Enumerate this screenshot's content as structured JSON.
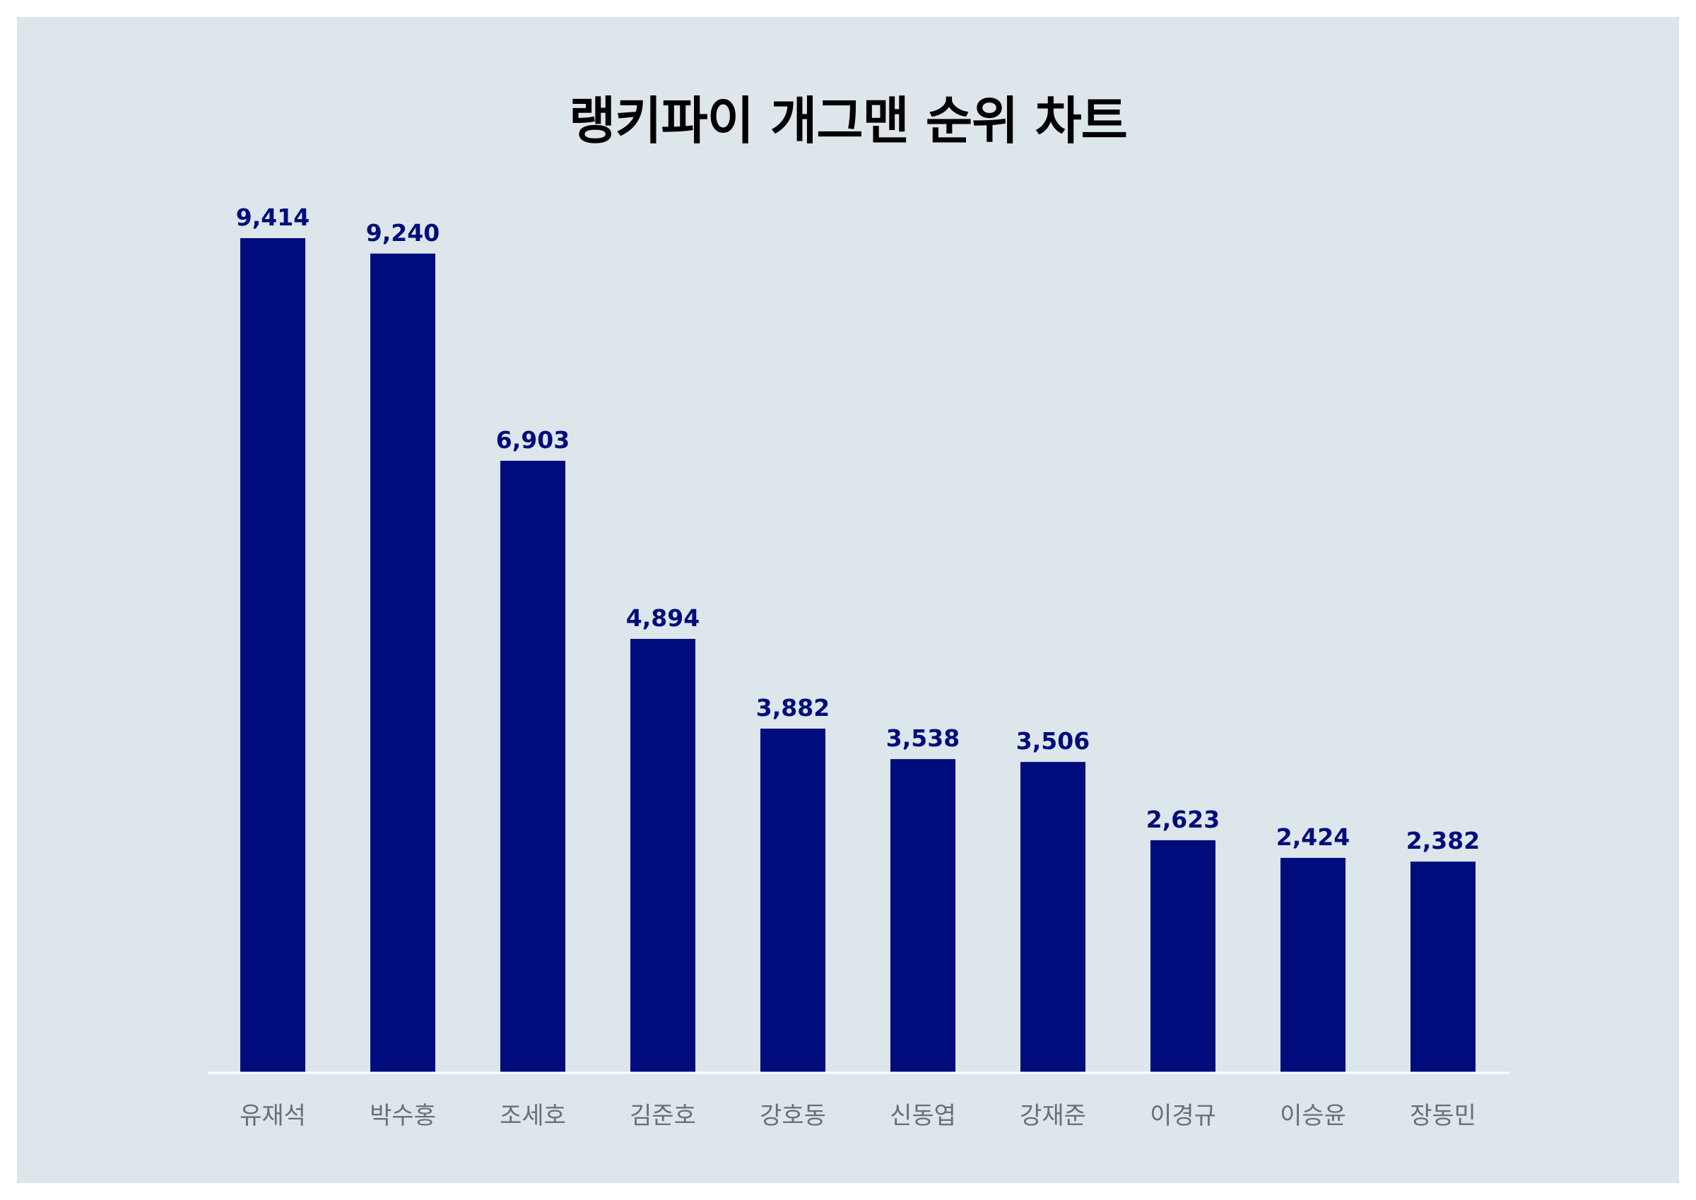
{
  "chart_data": {
    "type": "bar",
    "title": "랭키파이 개그맨 순위 차트",
    "categories": [
      "유재석",
      "박수홍",
      "조세호",
      "김준호",
      "강호동",
      "신동엽",
      "강재준",
      "이경규",
      "이승윤",
      "장동민"
    ],
    "values": [
      9414,
      9240,
      6903,
      4894,
      3882,
      3538,
      3506,
      2623,
      2424,
      2382
    ],
    "value_labels": [
      "9,414",
      "9,240",
      "6,903",
      "4,894",
      "3,882",
      "3,538",
      "3,506",
      "2,623",
      "2,424",
      "2,382"
    ],
    "xlabel": "",
    "ylabel": "",
    "ylim": [
      0,
      9414
    ],
    "grid": false,
    "legend": "none",
    "colors": {
      "bar": "#000c7c",
      "background": "#dce6eb",
      "value_label": "#000c7c",
      "category_label": "#6b6f73",
      "baseline": "#ffffff"
    }
  }
}
